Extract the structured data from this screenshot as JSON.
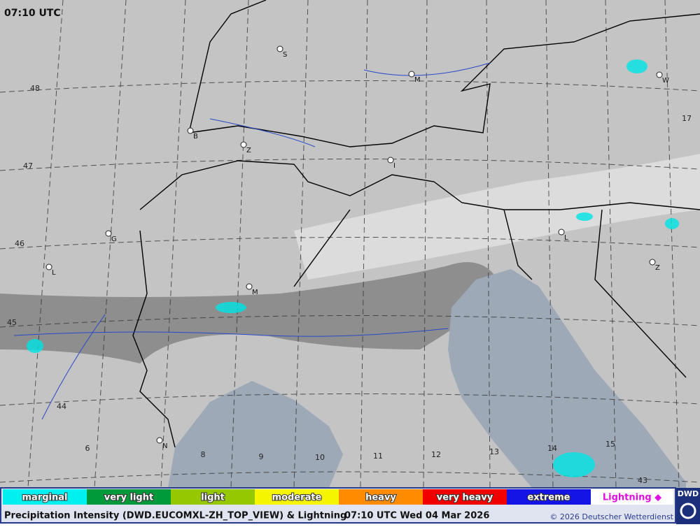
{
  "map": {
    "time": "07:10 UTC",
    "cities": [
      "S",
      "M",
      "W",
      "B",
      "Z",
      "I",
      "G",
      "L",
      "M",
      "L",
      "Z",
      "N"
    ],
    "lat_labels": [
      "48",
      "47",
      "46",
      "45",
      "44",
      "43"
    ],
    "lon_labels": [
      "6",
      "8",
      "9",
      "10",
      "11",
      "12",
      "13",
      "14",
      "15",
      "17"
    ]
  },
  "legend": {
    "items": [
      {
        "label": "marginal",
        "color": "#00f0f0"
      },
      {
        "label": "very light",
        "color": "#009a3a"
      },
      {
        "label": "light",
        "color": "#96c800"
      },
      {
        "label": "moderate",
        "color": "#f5f500"
      },
      {
        "label": "heavy",
        "color": "#ff8c00"
      },
      {
        "label": "very heavy",
        "color": "#f00000"
      },
      {
        "label": "extreme",
        "color": "#1414e6"
      }
    ],
    "lightning": "Lightning ◆"
  },
  "footer": {
    "title": "Precipitation Intensity (DWD.EUCOMXL-ZH_TOP_VIEW) & Lightning",
    "time": "07:10 UTC Wed 04 Mar 2026",
    "copyright": "© 2026 Deutscher Wetterdienst",
    "logo": "DWD"
  }
}
